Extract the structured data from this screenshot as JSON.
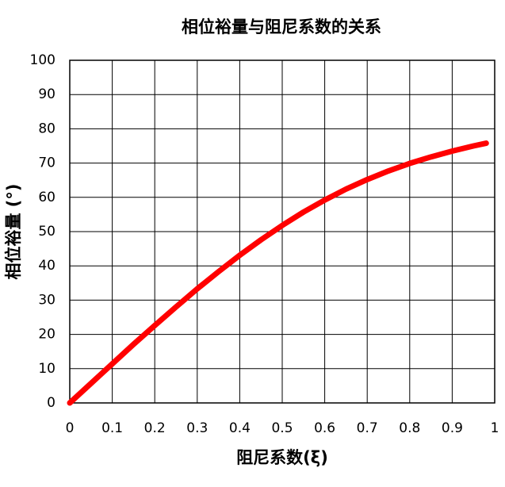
{
  "chart_data": {
    "type": "line",
    "title": "相位裕量与阻尼系数的关系",
    "x_label": "阻尼系数(ξ)",
    "y_label": "相位裕量 (°)",
    "x": [
      0,
      0.05,
      0.1,
      0.15,
      0.2,
      0.25,
      0.3,
      0.35,
      0.4,
      0.45,
      0.5,
      0.55,
      0.6,
      0.65,
      0.7,
      0.75,
      0.8,
      0.85,
      0.9,
      0.95,
      0.98
    ],
    "series": [
      {
        "name": "相位裕量",
        "color": "#ff0000",
        "values": [
          0,
          5.7,
          11.4,
          17.1,
          22.6,
          28.0,
          33.3,
          38.3,
          43.1,
          47.6,
          51.8,
          55.7,
          59.2,
          62.4,
          65.2,
          67.7,
          69.9,
          71.8,
          73.5,
          75.0,
          75.8
        ]
      }
    ],
    "xlim": [
      0,
      1
    ],
    "xticks": [
      0,
      0.1,
      0.2,
      0.3,
      0.4,
      0.5,
      0.6,
      0.7,
      0.8,
      0.9,
      1
    ],
    "ylim": [
      0,
      100
    ],
    "yticks": [
      0,
      10,
      20,
      30,
      40,
      50,
      60,
      70,
      80,
      90,
      100
    ],
    "grid": true
  }
}
